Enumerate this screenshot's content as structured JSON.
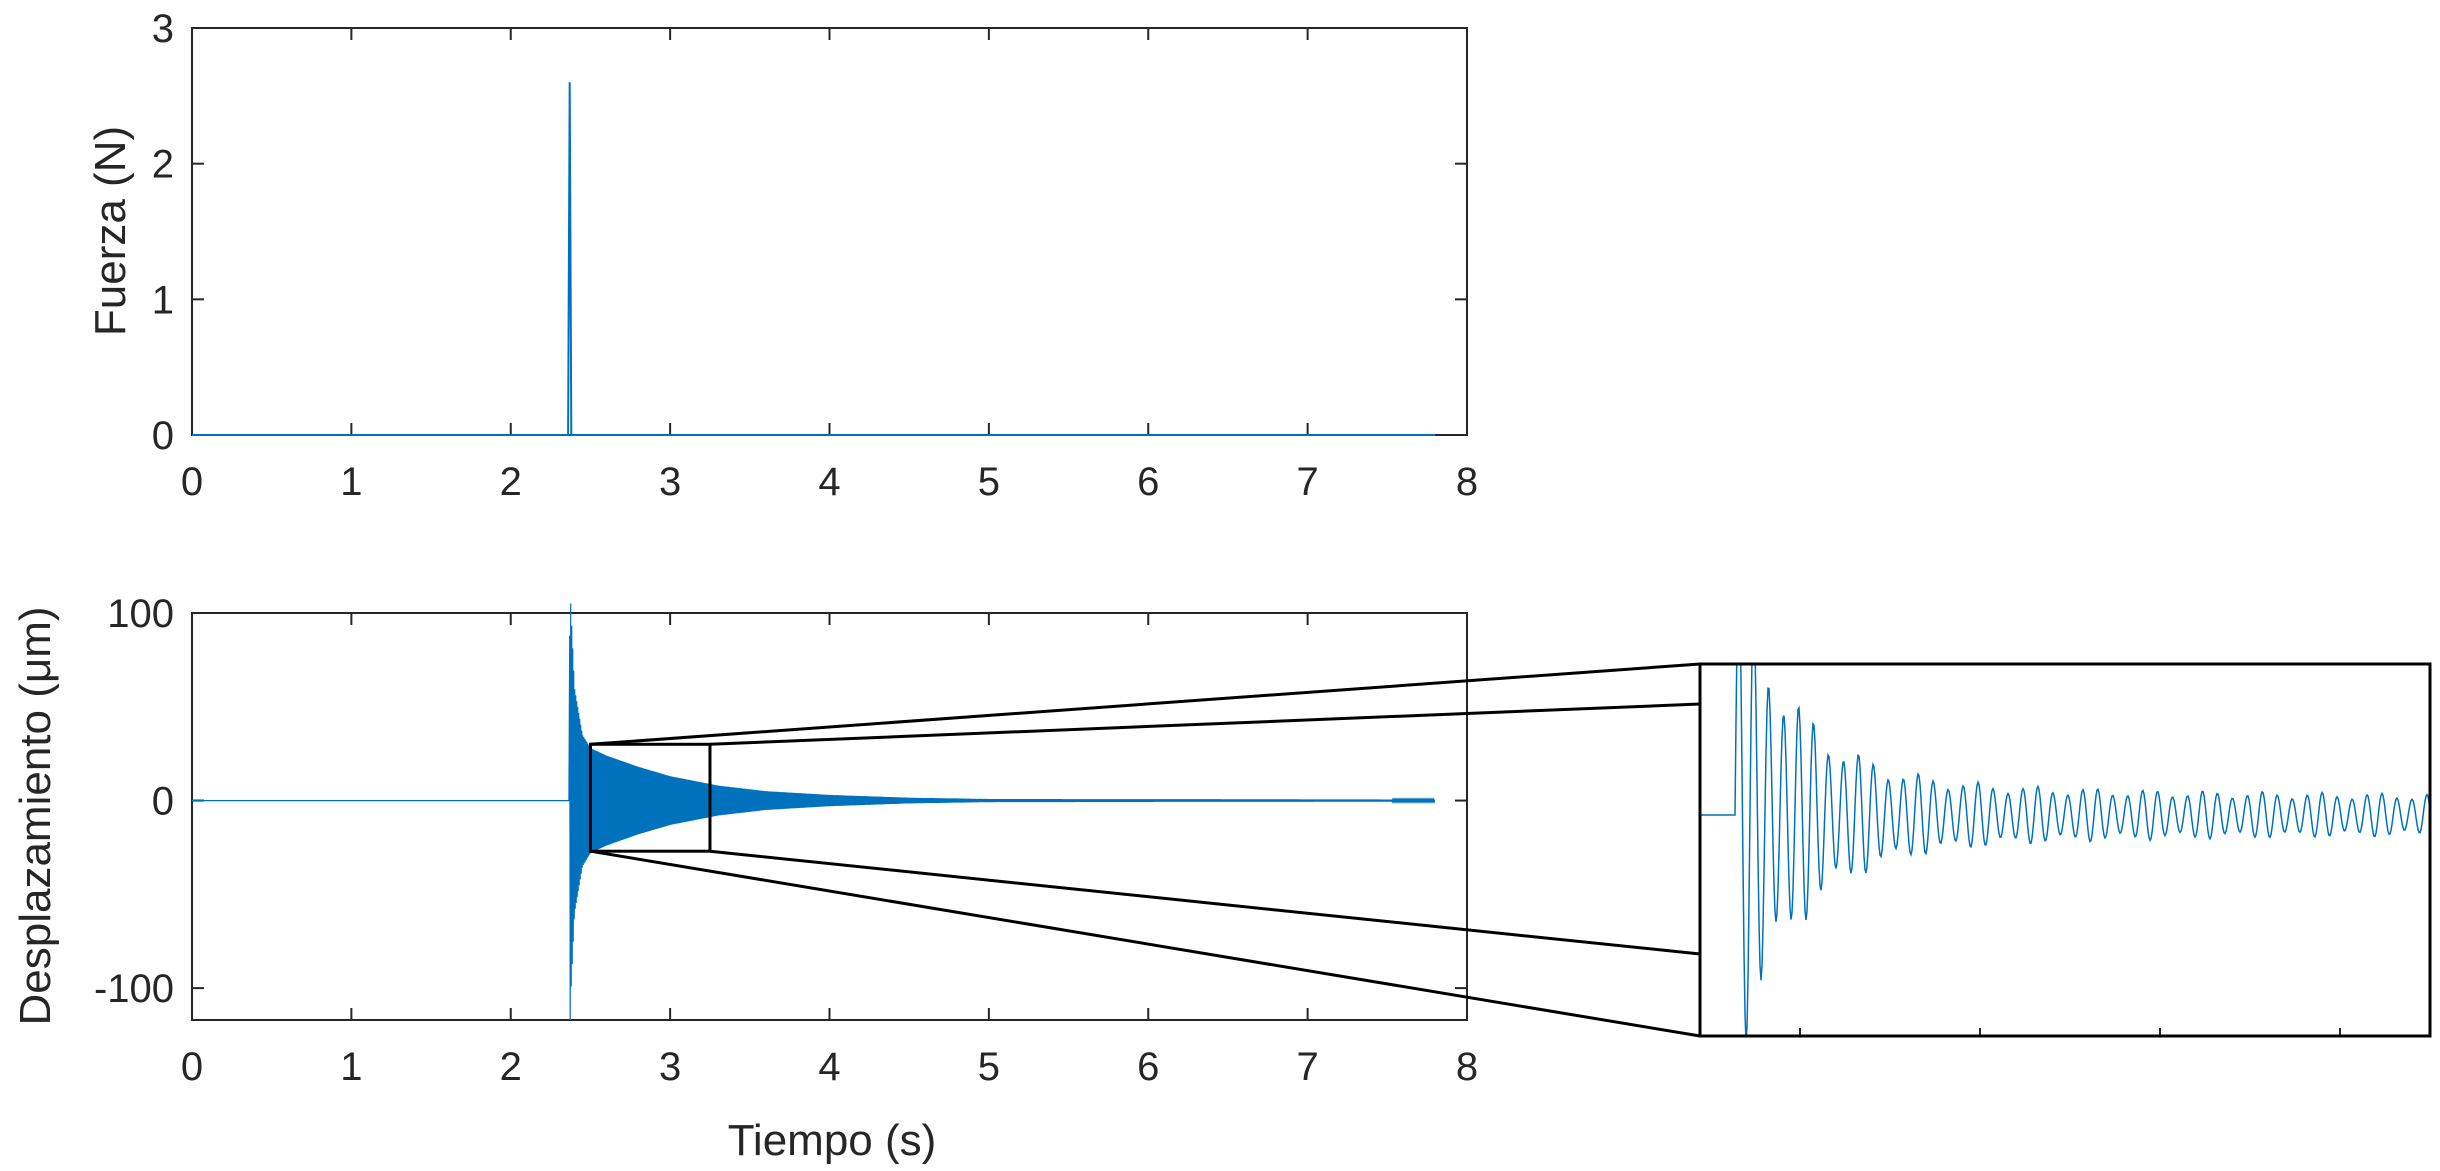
{
  "colors": {
    "signal": "#0072BD",
    "axes": "#262626",
    "zoom_box": "#000000"
  },
  "chart_data": [
    {
      "type": "line",
      "title": "",
      "xlabel": "",
      "ylabel": "Fuerza (N)",
      "xlim": [
        0,
        8
      ],
      "ylim": [
        0,
        3
      ],
      "xticks": [
        "0",
        "1",
        "2",
        "3",
        "4",
        "5",
        "6",
        "7",
        "8"
      ],
      "yticks": [
        "0",
        "1",
        "2",
        "3"
      ],
      "grid": false,
      "series": [
        {
          "name": "",
          "x": [
            0,
            2.36,
            2.37,
            2.38,
            7.8
          ],
          "y": [
            0,
            0,
            2.6,
            0,
            0
          ]
        }
      ]
    },
    {
      "type": "line",
      "title": "",
      "xlabel": "Tiempo (s)",
      "ylabel": "Desplazamiento (μm)",
      "xlim": [
        0,
        8
      ],
      "ylim": [
        -117,
        100
      ],
      "xticks": [
        "0",
        "1",
        "2",
        "3",
        "4",
        "5",
        "6",
        "7",
        "8"
      ],
      "yticks": [
        "-100",
        "0",
        "100"
      ],
      "grid": false,
      "series": [
        {
          "name": "",
          "signal_start": 2.37,
          "signal_end": 7.8,
          "peak_max": 88,
          "peak_min": -117,
          "envelope_x": [
            2.37,
            2.4,
            2.45,
            2.5,
            2.6,
            2.8,
            3.0,
            3.3,
            3.6,
            4.0,
            4.5,
            5.0,
            7.8
          ],
          "envelope_y": [
            117,
            60,
            35,
            28,
            24,
            18,
            13,
            8,
            5,
            3,
            1.5,
            0.8,
            0.5
          ]
        }
      ],
      "zoom_region": {
        "x": [
          2.5,
          3.25
        ],
        "y": [
          -27,
          30
        ]
      }
    }
  ]
}
